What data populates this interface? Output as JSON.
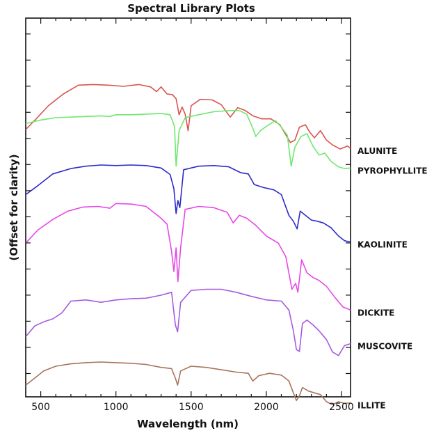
{
  "chart_data": {
    "type": "line",
    "title": "Spectral Library Plots",
    "xlabel": "Wavelength (nm)",
    "ylabel": "(Offset for clarity)",
    "xlim": [
      400,
      2560
    ],
    "x_ticks": [
      500,
      1000,
      1500,
      2000,
      2500
    ],
    "y_tick_count": 14,
    "grid": false,
    "legend": "direct labels right of each curve",
    "series": [
      {
        "name": "ALUNITE",
        "color": "#d9534f",
        "points": [
          [
            400,
            0.2
          ],
          [
            470,
            0.38
          ],
          [
            550,
            0.6
          ],
          [
            650,
            0.8
          ],
          [
            750,
            0.95
          ],
          [
            850,
            0.96
          ],
          [
            950,
            0.95
          ],
          [
            1050,
            0.93
          ],
          [
            1150,
            0.96
          ],
          [
            1230,
            0.92
          ],
          [
            1270,
            0.84
          ],
          [
            1300,
            0.92
          ],
          [
            1340,
            0.8
          ],
          [
            1375,
            0.79
          ],
          [
            1400,
            0.72
          ],
          [
            1420,
            0.45
          ],
          [
            1440,
            0.58
          ],
          [
            1460,
            0.46
          ],
          [
            1480,
            0.18
          ],
          [
            1500,
            0.6
          ],
          [
            1560,
            0.71
          ],
          [
            1640,
            0.7
          ],
          [
            1700,
            0.62
          ],
          [
            1760,
            0.41
          ],
          [
            1810,
            0.57
          ],
          [
            1860,
            0.52
          ],
          [
            1910,
            0.43
          ],
          [
            1970,
            0.38
          ],
          [
            2030,
            0.38
          ],
          [
            2090,
            0.28
          ],
          [
            2130,
            0.11
          ],
          [
            2160,
            -0.02
          ],
          [
            2190,
            0.02
          ],
          [
            2220,
            0.24
          ],
          [
            2260,
            0.28
          ],
          [
            2290,
            0.15
          ],
          [
            2320,
            0.06
          ],
          [
            2360,
            0.18
          ],
          [
            2400,
            0.02
          ],
          [
            2440,
            -0.06
          ],
          [
            2490,
            -0.13
          ],
          [
            2540,
            -0.08
          ],
          [
            2560,
            -0.12
          ]
        ]
      },
      {
        "name": "PYROPHYLLITE",
        "color": "#6ee86e",
        "points": [
          [
            400,
            0.3
          ],
          [
            500,
            0.36
          ],
          [
            600,
            0.4
          ],
          [
            700,
            0.41
          ],
          [
            800,
            0.42
          ],
          [
            900,
            0.43
          ],
          [
            960,
            0.42
          ],
          [
            1000,
            0.45
          ],
          [
            1100,
            0.45
          ],
          [
            1200,
            0.46
          ],
          [
            1300,
            0.47
          ],
          [
            1360,
            0.45
          ],
          [
            1390,
            0.25
          ],
          [
            1400,
            -0.42
          ],
          [
            1420,
            0.18
          ],
          [
            1460,
            0.4
          ],
          [
            1550,
            0.45
          ],
          [
            1650,
            0.5
          ],
          [
            1750,
            0.52
          ],
          [
            1820,
            0.52
          ],
          [
            1870,
            0.46
          ],
          [
            1910,
            0.22
          ],
          [
            1930,
            0.08
          ],
          [
            1960,
            0.18
          ],
          [
            2010,
            0.27
          ],
          [
            2060,
            0.35
          ],
          [
            2100,
            0.24
          ],
          [
            2140,
            0.1
          ],
          [
            2165,
            -0.42
          ],
          [
            2190,
            -0.1
          ],
          [
            2230,
            0.08
          ],
          [
            2270,
            0.13
          ],
          [
            2310,
            -0.08
          ],
          [
            2350,
            -0.23
          ],
          [
            2390,
            -0.2
          ],
          [
            2430,
            -0.34
          ],
          [
            2480,
            -0.43
          ],
          [
            2520,
            -0.46
          ],
          [
            2560,
            -0.45
          ]
        ]
      },
      {
        "name": "KAOLINITE",
        "color": "#2b2bc8",
        "points": [
          [
            400,
            -0.9
          ],
          [
            480,
            -0.75
          ],
          [
            580,
            -0.55
          ],
          [
            700,
            -0.46
          ],
          [
            800,
            -0.42
          ],
          [
            900,
            -0.4
          ],
          [
            1000,
            -0.41
          ],
          [
            1100,
            -0.4
          ],
          [
            1200,
            -0.41
          ],
          [
            1300,
            -0.45
          ],
          [
            1360,
            -0.56
          ],
          [
            1385,
            -0.8
          ],
          [
            1400,
            -1.22
          ],
          [
            1412,
            -1.0
          ],
          [
            1425,
            -1.12
          ],
          [
            1450,
            -0.48
          ],
          [
            1550,
            -0.42
          ],
          [
            1650,
            -0.41
          ],
          [
            1750,
            -0.43
          ],
          [
            1830,
            -0.53
          ],
          [
            1880,
            -0.55
          ],
          [
            1920,
            -0.73
          ],
          [
            1980,
            -0.78
          ],
          [
            2050,
            -0.82
          ],
          [
            2100,
            -0.9
          ],
          [
            2150,
            -1.25
          ],
          [
            2180,
            -1.35
          ],
          [
            2205,
            -1.48
          ],
          [
            2225,
            -1.18
          ],
          [
            2260,
            -1.25
          ],
          [
            2300,
            -1.33
          ],
          [
            2340,
            -1.35
          ],
          [
            2380,
            -1.38
          ],
          [
            2430,
            -1.46
          ],
          [
            2480,
            -1.6
          ],
          [
            2520,
            -1.68
          ],
          [
            2560,
            -1.7
          ]
        ]
      },
      {
        "name": "DICKITE",
        "color": "#e648e6",
        "points": [
          [
            400,
            -1.72
          ],
          [
            480,
            -1.5
          ],
          [
            580,
            -1.32
          ],
          [
            680,
            -1.18
          ],
          [
            780,
            -1.11
          ],
          [
            880,
            -1.1
          ],
          [
            960,
            -1.13
          ],
          [
            1000,
            -1.05
          ],
          [
            1100,
            -1.06
          ],
          [
            1200,
            -1.1
          ],
          [
            1250,
            -1.2
          ],
          [
            1300,
            -1.3
          ],
          [
            1340,
            -1.4
          ],
          [
            1370,
            -1.86
          ],
          [
            1385,
            -2.2
          ],
          [
            1400,
            -1.8
          ],
          [
            1412,
            -2.37
          ],
          [
            1430,
            -1.8
          ],
          [
            1460,
            -1.15
          ],
          [
            1550,
            -1.1
          ],
          [
            1650,
            -1.12
          ],
          [
            1740,
            -1.2
          ],
          [
            1780,
            -1.38
          ],
          [
            1820,
            -1.25
          ],
          [
            1870,
            -1.3
          ],
          [
            1930,
            -1.42
          ],
          [
            2000,
            -1.6
          ],
          [
            2080,
            -1.72
          ],
          [
            2130,
            -1.95
          ],
          [
            2170,
            -2.5
          ],
          [
            2195,
            -2.4
          ],
          [
            2210,
            -2.55
          ],
          [
            2235,
            -2.0
          ],
          [
            2270,
            -2.22
          ],
          [
            2310,
            -2.3
          ],
          [
            2350,
            -2.35
          ],
          [
            2400,
            -2.45
          ],
          [
            2460,
            -2.65
          ],
          [
            2510,
            -2.8
          ],
          [
            2560,
            -2.85
          ]
        ]
      },
      {
        "name": "MUSCOVITE",
        "color": "#a55ae0",
        "points": [
          [
            400,
            -3.3
          ],
          [
            460,
            -3.12
          ],
          [
            520,
            -3.05
          ],
          [
            580,
            -3.0
          ],
          [
            640,
            -2.9
          ],
          [
            700,
            -2.7
          ],
          [
            800,
            -2.68
          ],
          [
            900,
            -2.72
          ],
          [
            1000,
            -2.68
          ],
          [
            1100,
            -2.66
          ],
          [
            1200,
            -2.65
          ],
          [
            1300,
            -2.6
          ],
          [
            1370,
            -2.55
          ],
          [
            1395,
            -3.1
          ],
          [
            1410,
            -3.22
          ],
          [
            1430,
            -2.72
          ],
          [
            1500,
            -2.52
          ],
          [
            1600,
            -2.5
          ],
          [
            1700,
            -2.5
          ],
          [
            1800,
            -2.55
          ],
          [
            1900,
            -2.62
          ],
          [
            2000,
            -2.68
          ],
          [
            2100,
            -2.7
          ],
          [
            2150,
            -2.85
          ],
          [
            2180,
            -3.2
          ],
          [
            2200,
            -3.52
          ],
          [
            2220,
            -3.55
          ],
          [
            2240,
            -3.08
          ],
          [
            2270,
            -3.02
          ],
          [
            2310,
            -3.1
          ],
          [
            2350,
            -3.2
          ],
          [
            2400,
            -3.35
          ],
          [
            2440,
            -3.56
          ],
          [
            2480,
            -3.62
          ],
          [
            2520,
            -3.45
          ],
          [
            2560,
            -3.42
          ]
        ]
      },
      {
        "name": "ILLITE",
        "color": "#a8735a",
        "points": [
          [
            400,
            -4.12
          ],
          [
            460,
            -4.0
          ],
          [
            520,
            -3.88
          ],
          [
            600,
            -3.8
          ],
          [
            700,
            -3.76
          ],
          [
            800,
            -3.74
          ],
          [
            900,
            -3.73
          ],
          [
            1000,
            -3.74
          ],
          [
            1100,
            -3.75
          ],
          [
            1200,
            -3.77
          ],
          [
            1300,
            -3.82
          ],
          [
            1370,
            -3.84
          ],
          [
            1395,
            -4.0
          ],
          [
            1410,
            -4.12
          ],
          [
            1430,
            -3.88
          ],
          [
            1500,
            -3.8
          ],
          [
            1600,
            -3.82
          ],
          [
            1700,
            -3.86
          ],
          [
            1800,
            -3.9
          ],
          [
            1880,
            -3.92
          ],
          [
            1910,
            -4.05
          ],
          [
            1950,
            -3.96
          ],
          [
            2020,
            -3.92
          ],
          [
            2100,
            -3.95
          ],
          [
            2150,
            -4.05
          ],
          [
            2180,
            -4.25
          ],
          [
            2200,
            -4.38
          ],
          [
            2220,
            -4.3
          ],
          [
            2240,
            -4.16
          ],
          [
            2280,
            -4.22
          ],
          [
            2320,
            -4.25
          ],
          [
            2360,
            -4.28
          ],
          [
            2400,
            -4.4
          ],
          [
            2440,
            -4.45
          ],
          [
            2480,
            -4.4
          ],
          [
            2520,
            -4.43
          ],
          [
            2560,
            -4.42
          ]
        ]
      }
    ]
  }
}
